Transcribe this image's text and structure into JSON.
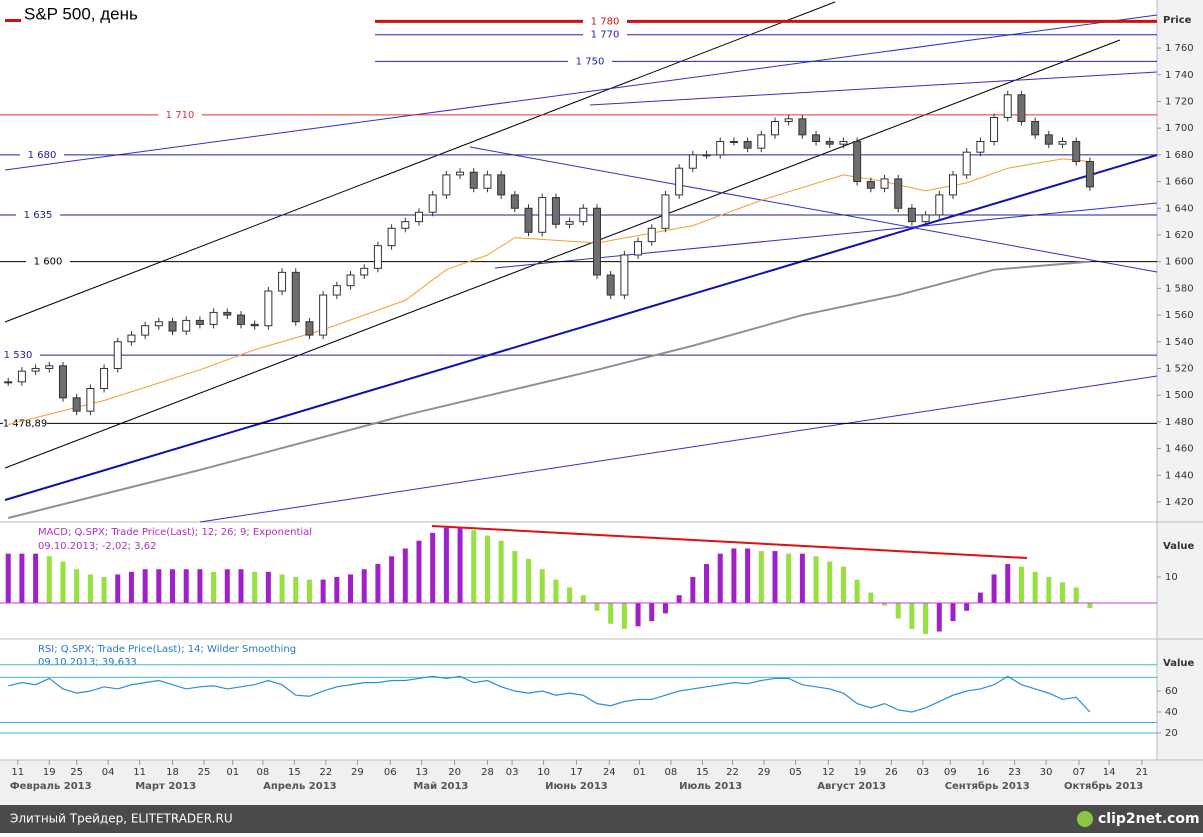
{
  "chart_data": [
    {
      "type": "candlestick",
      "title": "S&P 500, день",
      "y_label": "Price",
      "values": [
        1510,
        1518,
        1520,
        1522,
        1498,
        1488,
        1505,
        1520,
        1540,
        1545,
        1552,
        1555,
        1548,
        1556,
        1553,
        1562,
        1560,
        1553,
        1552,
        1578,
        1592,
        1555,
        1545,
        1575,
        1582,
        1590,
        1595,
        1612,
        1625,
        1630,
        1637,
        1650,
        1665,
        1667,
        1655,
        1665,
        1650,
        1640,
        1622,
        1648,
        1628,
        1630,
        1640,
        1590,
        1575,
        1605,
        1615,
        1625,
        1650,
        1670,
        1680,
        1680,
        1690,
        1690,
        1685,
        1695,
        1705,
        1707,
        1695,
        1690,
        1688,
        1690,
        1660,
        1655,
        1662,
        1640,
        1630,
        1635,
        1650,
        1665,
        1682,
        1690,
        1708,
        1725,
        1705,
        1695,
        1688,
        1690,
        1675,
        1656
      ],
      "up_color": "#ffffff",
      "down_color": "#6e6e6e",
      "overlays": [
        {
          "color": "#f0a030",
          "x": [
            0,
            7,
            14,
            18,
            23,
            29,
            32,
            35,
            37,
            43,
            50,
            55,
            61,
            64,
            67,
            70,
            73,
            77,
            79
          ],
          "values": [
            1478,
            1496,
            1519,
            1534,
            1549,
            1571,
            1594,
            1605,
            1618,
            1614,
            1627,
            1646,
            1665,
            1660,
            1653,
            1659,
            1670,
            1677,
            1675
          ]
        },
        {
          "color": "#909090",
          "x": [
            0,
            14,
            29,
            43,
            50,
            58,
            65,
            72,
            79
          ],
          "values": [
            1408,
            1444,
            1485,
            1519,
            1537,
            1560,
            1575,
            1594,
            1600
          ]
        }
      ],
      "levels": [
        {
          "value": 1780,
          "label": "1 780",
          "color": "#d01010"
        },
        {
          "value": 1770,
          "label": "1 770",
          "color": "#2020c0"
        },
        {
          "value": 1750,
          "label": "1 750",
          "color": "#2020c0"
        },
        {
          "value": 1710,
          "label": "1 710",
          "color": "#e03030"
        },
        {
          "value": 1680,
          "label": "1 680",
          "color": "#202090"
        },
        {
          "value": 1635,
          "label": "1 635",
          "color": "#202090"
        },
        {
          "value": 1600,
          "label": "1 600",
          "color": "#000000"
        },
        {
          "value": 1530,
          "label": "1 530",
          "color": "#202090"
        },
        {
          "value": 1478.89,
          "label": "1 478,89",
          "color": "#000000"
        }
      ],
      "ylim": [
        1405,
        1796
      ],
      "yticks": [
        {
          "value": 1420,
          "label": "1 420"
        },
        {
          "value": 1440,
          "label": "1 440"
        },
        {
          "value": 1460,
          "label": "1 460"
        },
        {
          "value": 1480,
          "label": "1 480"
        },
        {
          "value": 1500,
          "label": "1 500"
        },
        {
          "value": 1520,
          "label": "1 520"
        },
        {
          "value": 1540,
          "label": "1 540"
        },
        {
          "value": 1560,
          "label": "1 560"
        },
        {
          "value": 1580,
          "label": "1 580"
        },
        {
          "value": 1600,
          "label": "1 600"
        },
        {
          "value": 1620,
          "label": "1 620"
        },
        {
          "value": 1640,
          "label": "1 640"
        },
        {
          "value": 1660,
          "label": "1 660"
        },
        {
          "value": 1680,
          "label": "1 680"
        },
        {
          "value": 1700,
          "label": "1 700"
        },
        {
          "value": 1720,
          "label": "1 720"
        },
        {
          "value": 1740,
          "label": "1 740"
        },
        {
          "value": 1760,
          "label": "1 760"
        }
      ],
      "xlim": [
        -0.6,
        83.9
      ],
      "xticks": [
        {
          "value": 0.7,
          "label": "11"
        },
        {
          "value": 3.0,
          "label": "19"
        },
        {
          "value": 5.0,
          "label": "25"
        },
        {
          "value": 7.3,
          "label": "04"
        },
        {
          "value": 9.6,
          "label": "11"
        },
        {
          "value": 12.0,
          "label": "18"
        },
        {
          "value": 14.3,
          "label": "25"
        },
        {
          "value": 16.4,
          "label": "01"
        },
        {
          "value": 18.6,
          "label": "08"
        },
        {
          "value": 20.9,
          "label": "15"
        },
        {
          "value": 23.2,
          "label": "22"
        },
        {
          "value": 25.5,
          "label": "29"
        },
        {
          "value": 27.9,
          "label": "06"
        },
        {
          "value": 30.2,
          "label": "13"
        },
        {
          "value": 32.6,
          "label": "20"
        },
        {
          "value": 35.0,
          "label": "28"
        },
        {
          "value": 36.8,
          "label": "03"
        },
        {
          "value": 39.1,
          "label": "10"
        },
        {
          "value": 41.5,
          "label": "17"
        },
        {
          "value": 43.9,
          "label": "24"
        },
        {
          "value": 46.1,
          "label": "01"
        },
        {
          "value": 48.4,
          "label": "08"
        },
        {
          "value": 50.7,
          "label": "15"
        },
        {
          "value": 52.9,
          "label": "22"
        },
        {
          "value": 55.2,
          "label": "29"
        },
        {
          "value": 57.5,
          "label": "05"
        },
        {
          "value": 59.9,
          "label": "12"
        },
        {
          "value": 62.2,
          "label": "19"
        },
        {
          "value": 64.5,
          "label": "26"
        },
        {
          "value": 66.8,
          "label": "03"
        },
        {
          "value": 68.8,
          "label": "09"
        },
        {
          "value": 71.2,
          "label": "16"
        },
        {
          "value": 73.5,
          "label": "23"
        },
        {
          "value": 75.8,
          "label": "30"
        },
        {
          "value": 78.2,
          "label": "07"
        },
        {
          "value": 80.4,
          "label": "14"
        },
        {
          "value": 82.8,
          "label": "21"
        }
      ],
      "months": [
        {
          "value": 3.1,
          "label": "Февраль 2013"
        },
        {
          "value": 11.5,
          "label": "Март 2013"
        },
        {
          "value": 21.3,
          "label": "Апрель 2013"
        },
        {
          "value": 31.6,
          "label": "Май 2013"
        },
        {
          "value": 41.5,
          "label": "Июнь 2013"
        },
        {
          "value": 51.3,
          "label": "Июль 2013"
        },
        {
          "value": 61.6,
          "label": "Август 2013"
        },
        {
          "value": 71.5,
          "label": "Сентябрь 2013"
        },
        {
          "value": 80.0,
          "label": "Октябрь 2013"
        }
      ]
    },
    {
      "type": "macd",
      "title": "MACD; Q.SPX; Trade Price(Last);  12; 26; 9; Exponential",
      "subtitle": "09.10.2013; -2,02; 3,62",
      "y_label": "Value",
      "values": [
        19,
        19,
        19,
        18,
        16,
        13,
        11,
        10,
        11,
        12,
        13,
        13,
        13,
        13,
        13,
        12,
        13,
        13,
        12,
        12,
        11,
        10,
        9,
        9,
        10,
        11,
        13,
        15,
        18,
        21,
        24,
        27,
        29,
        29,
        28,
        26,
        24,
        20,
        17,
        13,
        9,
        6,
        3,
        -3,
        -8,
        -10,
        -9,
        -7,
        -4,
        3,
        10,
        15,
        19,
        21,
        21,
        20,
        20,
        19,
        19,
        18,
        16,
        14,
        9,
        4,
        -1,
        -6,
        -10,
        -12,
        -11,
        -7,
        -3,
        4,
        11,
        15,
        14,
        12,
        10,
        8,
        6,
        -2
      ],
      "rising_color": "#a020c8",
      "falling_color": "#96e040",
      "zero_color": "#c040e0",
      "title_color": "#b030c0",
      "ylim": [
        -13.5,
        31.2
      ],
      "yticks": [
        10
      ]
    },
    {
      "type": "line",
      "title": "RSI; Q.SPX; Trade Price(Last);  14; Wilder Smoothing",
      "subtitle": "09.10.2013; 39,633",
      "y_label": "Value",
      "values": [
        65,
        68,
        66,
        72,
        62,
        58,
        60,
        64,
        62,
        66,
        68,
        70,
        66,
        62,
        64,
        65,
        62,
        64,
        66,
        70,
        66,
        56,
        55,
        60,
        64,
        66,
        68,
        68,
        70,
        70,
        72,
        74,
        72,
        74,
        68,
        70,
        64,
        60,
        58,
        60,
        56,
        58,
        56,
        48,
        46,
        50,
        52,
        52,
        56,
        60,
        62,
        64,
        66,
        68,
        67,
        70,
        72,
        72,
        66,
        64,
        62,
        58,
        48,
        44,
        48,
        42,
        40,
        44,
        50,
        56,
        60,
        62,
        66,
        74,
        66,
        62,
        58,
        52,
        54,
        40
      ],
      "color": "#2a8fd6",
      "title_color": "#2a78c8",
      "levels": [
        85,
        73,
        30,
        20
      ],
      "level_color": "#40b8e0",
      "ylim": [
        -5.7,
        108.6
      ],
      "yticks": [
        20,
        40,
        60
      ]
    }
  ],
  "footer": {
    "text": "Элитный Трейдер, ELITETRADER.RU",
    "logo": "clip2net.com"
  }
}
